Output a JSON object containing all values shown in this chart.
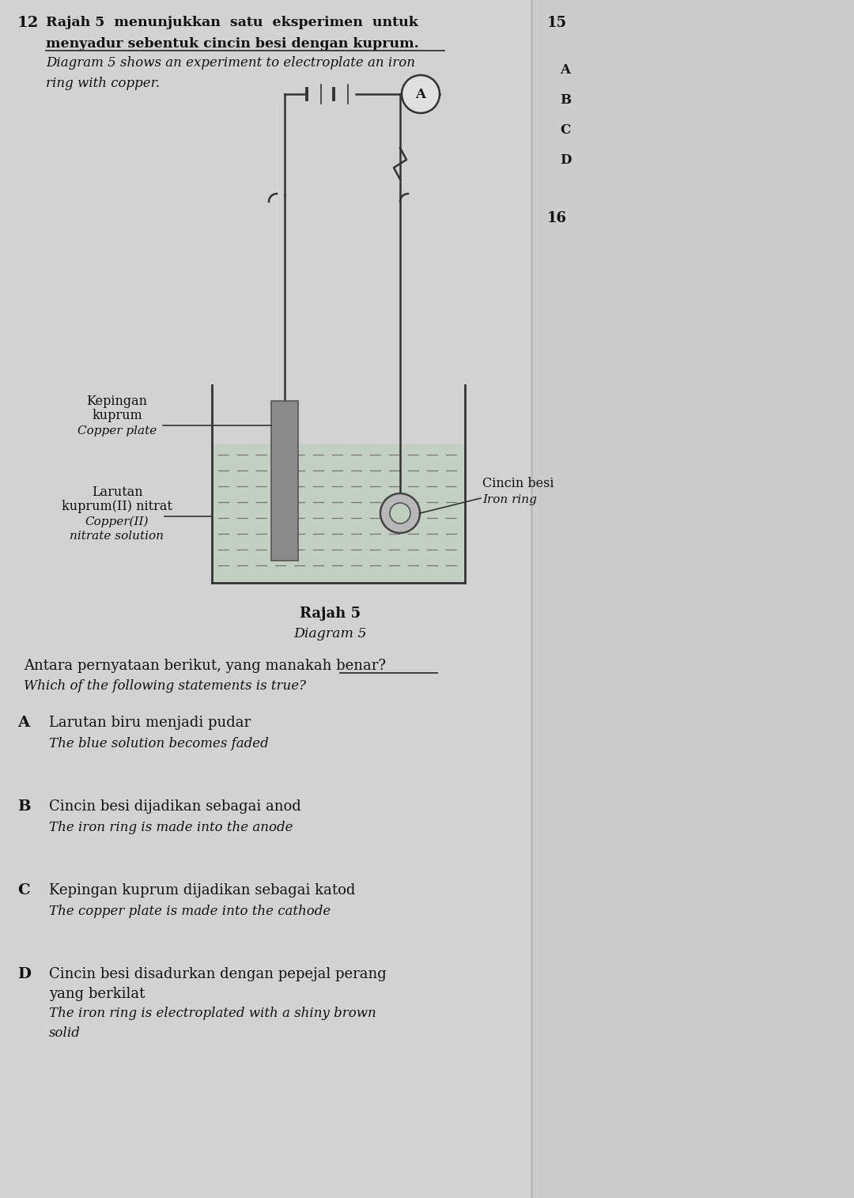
{
  "bg_color": "#cccccc",
  "question_num": "12",
  "malay_title_line1": "Rajah 5  menunjukkan  satu  eksperimen  untuk",
  "malay_title_line2": "menyadur sebentuk cincin besi dengan kuprum.",
  "english_title_line1": "Diagram 5 shows an experiment to electroplate an iron",
  "english_title_line2": "ring with copper.",
  "label_copper_plate_malay1": "Kepingan",
  "label_copper_plate_malay2": "kuprum",
  "label_copper_plate_english": "Copper plate",
  "label_solution_malay1": "Larutan",
  "label_solution_malay2": "kuprum(II) nitrat",
  "label_solution_english1": "Copper(II)",
  "label_solution_english2": "nitrate solution",
  "label_iron_ring_malay": "Cincin besi",
  "label_iron_ring_english": "Iron ring",
  "diagram_caption_malay": "Rajah 5",
  "diagram_caption_english": "Diagram 5",
  "question_malay": "Antara pernyataan berikut, yang manakah benar?",
  "question_english": "Which of the following statements is true?",
  "option_A_malay": "Larutan biru menjadi pudar",
  "option_A_english": "The blue solution becomes faded",
  "option_B_malay": "Cincin besi dijadikan sebagai anod",
  "option_B_english": "The iron ring is made into the anode",
  "option_C_malay": "Kepingan kuprum dijadikan sebagai katod",
  "option_C_english": "The copper plate is made into the cathode",
  "option_D_malay1": "Cincin besi disadurkan dengan pepejal perang",
  "option_D_malay2": "yang berkilat",
  "option_D_english1": "The iron ring is electroplated with a shiny brown",
  "option_D_english2": "solid",
  "right_col_num1": "15",
  "right_col_num2": "16",
  "ammeter_label": "A"
}
